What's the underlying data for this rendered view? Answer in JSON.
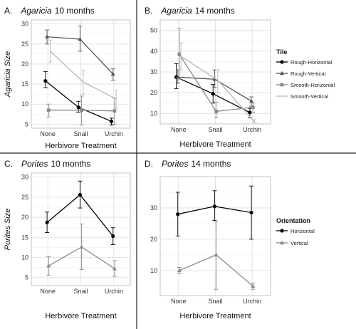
{
  "chart_data": [
    {
      "panel_letter": "A.",
      "title_genus": "Agaricia",
      "title_time": "10 months",
      "type": "line",
      "categories": [
        "None",
        "Snail",
        "Urchin"
      ],
      "xlabel": "Herbivore Treatment",
      "ylabel": "Agaricia Size",
      "ylim": [
        4,
        31
      ],
      "yticks": [
        5,
        10,
        15,
        20,
        25,
        30
      ],
      "grid": true,
      "series": [
        {
          "values": [
            15.8,
            9.2,
            5.7
          ],
          "err_low": [
            14.1,
            8.0,
            4.8
          ],
          "err_high": [
            18.1,
            10.7,
            6.5
          ],
          "color": "#000000",
          "marker": "circle"
        },
        {
          "values": [
            26.8,
            26.2,
            17.5
          ],
          "err_low": [
            25.0,
            23.2,
            16.0
          ],
          "err_high": [
            28.5,
            29.5,
            18.8
          ],
          "color": "#555555",
          "marker": "triangle"
        },
        {
          "values": [
            8.5,
            8.5,
            8.3
          ],
          "err_low": [
            6.8,
            4.8,
            5.0
          ],
          "err_high": [
            10.0,
            12.0,
            11.5
          ],
          "color": "#8a8a8a",
          "marker": "square"
        },
        {
          "values": [
            23.2,
            15.5,
            11.3
          ],
          "err_low": [
            20.5,
            12.5,
            9.0
          ],
          "err_high": [
            26.0,
            18.5,
            13.5
          ],
          "color": "#b8b8b8",
          "marker": "none"
        }
      ]
    },
    {
      "panel_letter": "B.",
      "title_genus": "Agaricia",
      "title_time": "14 months",
      "type": "line",
      "categories": [
        "None",
        "Snail",
        "Urchin"
      ],
      "xlabel": "Herbivore Treatment",
      "ylabel": "",
      "ylim": [
        5,
        55
      ],
      "yticks": [
        10,
        20,
        30,
        40,
        50
      ],
      "grid": true,
      "legend": {
        "title": "Tile",
        "placement": "right"
      },
      "series": [
        {
          "name": "Rough-Horizontal",
          "values": [
            27.5,
            19.5,
            10.5
          ],
          "err_low": [
            22.0,
            15.0,
            8.0
          ],
          "err_high": [
            34.0,
            24.0,
            12.5
          ],
          "color": "#000000",
          "marker": "circle"
        },
        {
          "name": "Rough-Vertical",
          "values": [
            27.5,
            26.5,
            16.0
          ],
          "err_low": [
            24.5,
            22.5,
            13.5
          ],
          "err_high": [
            31.0,
            31.0,
            18.0
          ],
          "color": "#555555",
          "marker": "triangle"
        },
        {
          "name": "Smooth-Horizontal",
          "values": [
            38.5,
            11.0,
            13.0
          ],
          "err_low": [
            26.5,
            8.0,
            10.5
          ],
          "err_high": [
            51.0,
            15.5,
            15.0
          ],
          "color": "#8a8a8a",
          "marker": "square"
        },
        {
          "name": "Smooth-Vertical",
          "values": [
            37.5,
            26.0,
            6.0
          ],
          "err_low": [
            31.0,
            20.0,
            5.5
          ],
          "err_high": [
            44.0,
            31.0,
            7.0
          ],
          "color": "#b8b8b8",
          "marker": "none"
        }
      ]
    },
    {
      "panel_letter": "C.",
      "title_genus": "Porites",
      "title_time": "10 months",
      "type": "line",
      "categories": [
        "None",
        "Snail",
        "Urchin"
      ],
      "xlabel": "Herbivore Treatment",
      "ylabel": "Porites Size",
      "ylim": [
        3,
        31
      ],
      "yticks": [
        5,
        10,
        15,
        20,
        25,
        30
      ],
      "grid": true,
      "series": [
        {
          "values": [
            18.7,
            25.6,
            15.3
          ],
          "err_low": [
            16.2,
            22.3,
            13.2
          ],
          "err_high": [
            21.3,
            29.0,
            17.4
          ],
          "color": "#000000",
          "marker": "circle"
        },
        {
          "values": [
            7.9,
            12.6,
            7.2
          ],
          "err_low": [
            5.6,
            7.0,
            5.3
          ],
          "err_high": [
            10.2,
            18.3,
            9.2
          ],
          "color": "#8a8a8a",
          "marker": "triangle"
        }
      ]
    },
    {
      "panel_letter": "D.",
      "title_genus": "Porites",
      "title_time": "14 months",
      "type": "line",
      "categories": [
        "None",
        "Snail",
        "Urchin"
      ],
      "xlabel": "Herbivore Treatment",
      "ylabel": "",
      "ylim": [
        2,
        40
      ],
      "yticks": [
        10,
        20,
        30
      ],
      "grid": true,
      "legend": {
        "title": "Orientation",
        "placement": "right"
      },
      "series": [
        {
          "name": "Horizontal",
          "values": [
            28.0,
            30.5,
            28.5
          ],
          "err_low": [
            21.0,
            26.0,
            20.0
          ],
          "err_high": [
            35.0,
            35.5,
            37.0
          ],
          "color": "#000000",
          "marker": "circle"
        },
        {
          "name": "Vertical",
          "values": [
            10.0,
            15.0,
            5.0
          ],
          "err_low": [
            9.0,
            4.0,
            4.0
          ],
          "err_high": [
            11.0,
            25.5,
            6.0
          ],
          "color": "#8a8a8a",
          "marker": "triangle"
        }
      ]
    }
  ]
}
